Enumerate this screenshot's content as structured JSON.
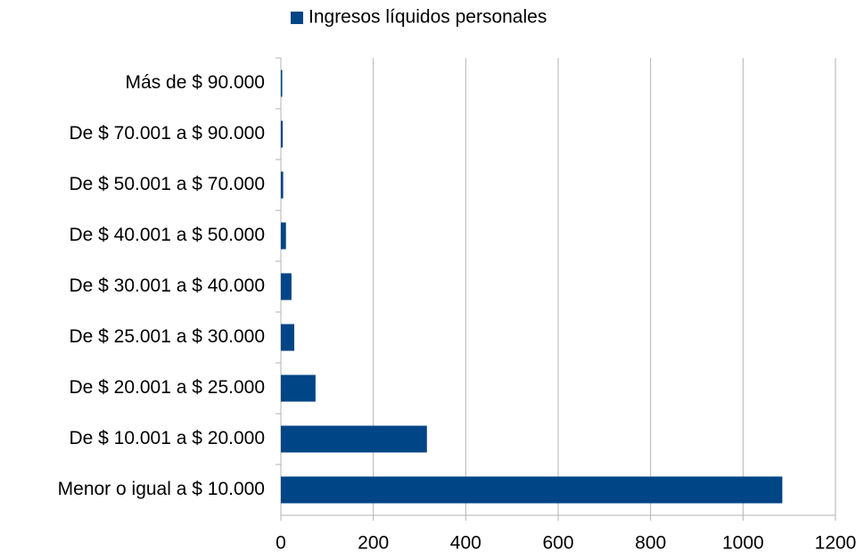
{
  "chart_data": {
    "type": "bar",
    "orientation": "horizontal",
    "categories": [
      "Más de $ 90.000",
      "De $ 70.001 a $ 90.000",
      "De $ 50.001 a $ 70.000",
      "De $ 40.001 a $ 50.000",
      "De $ 30.001 a $ 40.000",
      "De $ 25.001 a $ 30.000",
      "De $ 20.001 a $ 25.000",
      "De $ 10.001 a $ 20.000",
      "Menor o igual a $ 10.000"
    ],
    "series": [
      {
        "name": "Ingresos líquidos personales",
        "color": "#004586",
        "values": [
          3,
          4,
          5,
          11,
          23,
          29,
          75,
          316,
          1085
        ]
      }
    ],
    "xlim": [
      0,
      1200
    ],
    "xticks": [
      0,
      200,
      400,
      600,
      800,
      1000,
      1200
    ],
    "grid": true,
    "legend": "top"
  }
}
